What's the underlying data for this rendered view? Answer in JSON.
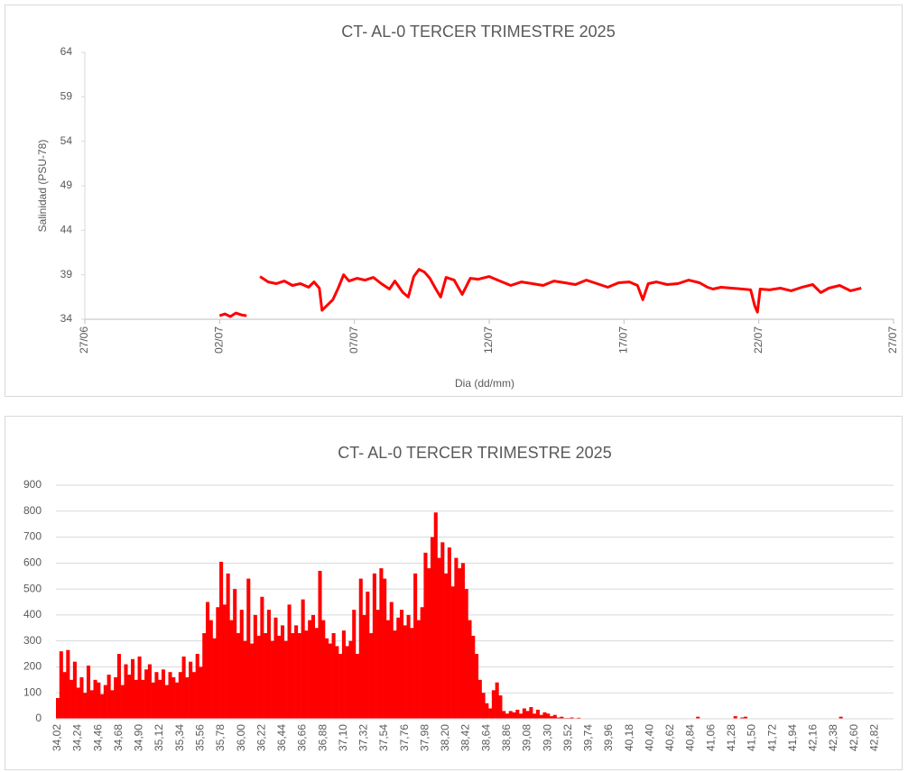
{
  "chart_data": [
    {
      "type": "line",
      "title": "CT- AL-0 TERCER TRIMESTRE 2025",
      "ylabel": "Salinidad (PSU-78)",
      "xlabel": "Dia (dd/mm)",
      "xlim": [
        0,
        30
      ],
      "xticks": [
        {
          "value": 0,
          "label": "27/06"
        },
        {
          "value": 5,
          "label": "02/07"
        },
        {
          "value": 10,
          "label": "07/07"
        },
        {
          "value": 15,
          "label": "12/07"
        },
        {
          "value": 20,
          "label": "17/07"
        },
        {
          "value": 25,
          "label": "22/07"
        },
        {
          "value": 30,
          "label": "27/07"
        }
      ],
      "ylim": [
        34,
        64
      ],
      "yticks": [
        34,
        39,
        44,
        49,
        54,
        59,
        64
      ],
      "grid": false,
      "series": [
        {
          "name": "Salinidad",
          "color": "#ff0000",
          "x": [
            5.0,
            5.2,
            5.4,
            5.6,
            5.8,
            6.0,
            6.2,
            6.5,
            6.8,
            7.1,
            7.4,
            7.7,
            8.0,
            8.3,
            8.5,
            8.7,
            8.8,
            9.0,
            9.2,
            9.4,
            9.6,
            9.8,
            10.1,
            10.4,
            10.7,
            11.0,
            11.3,
            11.5,
            11.8,
            12.0,
            12.2,
            12.4,
            12.6,
            12.8,
            13.0,
            13.2,
            13.4,
            13.7,
            14.0,
            14.3,
            14.6,
            15.0,
            15.4,
            15.8,
            16.2,
            16.6,
            17.0,
            17.4,
            17.8,
            18.2,
            18.6,
            19.0,
            19.4,
            19.8,
            20.2,
            20.5,
            20.7,
            20.9,
            21.2,
            21.6,
            22.0,
            22.4,
            22.8,
            23.1,
            23.3,
            23.6,
            24.0,
            24.4,
            24.7,
            24.85,
            24.95,
            25.05,
            25.4,
            25.8,
            26.2,
            26.6,
            27.0,
            27.3,
            27.6,
            28.0,
            28.4,
            28.8
          ],
          "values": [
            34.4,
            34.6,
            34.3,
            34.7,
            34.5,
            34.4,
            null,
            38.8,
            38.2,
            38.0,
            38.3,
            37.8,
            38.0,
            37.6,
            38.2,
            37.5,
            35.0,
            35.6,
            36.2,
            37.5,
            39.0,
            38.3,
            38.6,
            38.4,
            38.7,
            38.0,
            37.4,
            38.3,
            37.0,
            36.5,
            38.8,
            39.6,
            39.3,
            38.6,
            37.5,
            36.5,
            38.7,
            38.4,
            36.8,
            38.6,
            38.5,
            38.8,
            38.3,
            37.8,
            38.2,
            38.0,
            37.8,
            38.3,
            38.1,
            37.9,
            38.4,
            38.0,
            37.6,
            38.1,
            38.2,
            37.8,
            36.2,
            38.0,
            38.2,
            37.9,
            38.0,
            38.4,
            38.1,
            37.6,
            37.4,
            37.6,
            37.5,
            37.4,
            37.3,
            35.5,
            34.8,
            37.4,
            37.3,
            37.5,
            37.2,
            37.6,
            37.9,
            37.0,
            37.5,
            37.8,
            37.2,
            37.5
          ]
        }
      ]
    },
    {
      "type": "bar",
      "title": "CT- AL-0 TERCER TRIMESTRE 2025",
      "color": "#ff0000",
      "ylim": [
        0,
        900
      ],
      "yticks": [
        0,
        100,
        200,
        300,
        400,
        500,
        600,
        700,
        800,
        900
      ],
      "grid": true,
      "categories": [
        "34,02",
        null,
        null,
        null,
        null,
        null,
        "34,24",
        null,
        null,
        null,
        null,
        null,
        "34,46",
        null,
        null,
        null,
        null,
        null,
        "34,68",
        null,
        null,
        null,
        null,
        null,
        "34,90",
        null,
        null,
        null,
        null,
        null,
        "35,12",
        null,
        null,
        null,
        null,
        null,
        "35,34",
        null,
        null,
        null,
        null,
        null,
        "35,56",
        null,
        null,
        null,
        null,
        null,
        "35,78",
        null,
        null,
        null,
        null,
        null,
        "36,00",
        null,
        null,
        null,
        null,
        null,
        "36,22",
        null,
        null,
        null,
        null,
        null,
        "36,44",
        null,
        null,
        null,
        null,
        null,
        "36,66",
        null,
        null,
        null,
        null,
        null,
        "36,88",
        null,
        null,
        null,
        null,
        null,
        "37,10",
        null,
        null,
        null,
        null,
        null,
        "37,32",
        null,
        null,
        null,
        null,
        null,
        "37,54",
        null,
        null,
        null,
        null,
        null,
        "37,76",
        null,
        null,
        null,
        null,
        null,
        "37,98",
        null,
        null,
        null,
        null,
        null,
        "38,20",
        null,
        null,
        null,
        null,
        null,
        "38,42",
        null,
        null,
        null,
        null,
        null,
        "38,64",
        null,
        null,
        null,
        null,
        null,
        "38,86",
        null,
        null,
        null,
        null,
        null,
        "39,08",
        null,
        null,
        null,
        null,
        null,
        "39,30",
        null,
        null,
        null,
        null,
        null,
        "39,52",
        null,
        null,
        null,
        null,
        null,
        "39,74",
        null,
        null,
        null,
        null,
        null,
        "39,96",
        null,
        null,
        null,
        null,
        null,
        "40,18",
        null,
        null,
        null,
        null,
        null,
        "40,40",
        null,
        null,
        null,
        null,
        null,
        "40,62",
        null,
        null,
        null,
        null,
        null,
        "40,84",
        null,
        null,
        null,
        null,
        null,
        "41,06",
        null,
        null,
        null,
        null,
        null,
        "41,28",
        null,
        null,
        null,
        null,
        null,
        "41,50",
        null,
        null,
        null,
        null,
        null,
        "41,72",
        null,
        null,
        null,
        null,
        null,
        "41,94",
        null,
        null,
        null,
        null,
        null,
        "42,16",
        null,
        null,
        null,
        null,
        null,
        "42,38",
        null,
        null,
        null,
        null,
        null,
        "42,60",
        null,
        null,
        null,
        null,
        null,
        "42,82",
        null,
        null,
        null,
        null,
        null
      ],
      "values": [
        80,
        260,
        180,
        265,
        150,
        220,
        120,
        160,
        100,
        205,
        110,
        150,
        140,
        95,
        130,
        170,
        110,
        160,
        250,
        130,
        210,
        170,
        230,
        150,
        240,
        150,
        190,
        210,
        140,
        180,
        150,
        190,
        130,
        180,
        160,
        140,
        180,
        240,
        160,
        220,
        180,
        250,
        200,
        330,
        450,
        380,
        310,
        430,
        605,
        440,
        560,
        380,
        500,
        330,
        420,
        300,
        540,
        290,
        400,
        320,
        470,
        330,
        420,
        300,
        390,
        320,
        360,
        300,
        440,
        330,
        360,
        330,
        460,
        340,
        380,
        400,
        350,
        570,
        380,
        310,
        290,
        330,
        280,
        250,
        340,
        280,
        300,
        420,
        250,
        540,
        400,
        490,
        330,
        560,
        420,
        580,
        540,
        380,
        450,
        340,
        390,
        420,
        360,
        400,
        350,
        560,
        380,
        430,
        640,
        580,
        700,
        795,
        620,
        680,
        560,
        660,
        510,
        620,
        580,
        600,
        500,
        380,
        320,
        250,
        150,
        100,
        60,
        40,
        110,
        140,
        90,
        30,
        20,
        30,
        25,
        35,
        20,
        40,
        30,
        45,
        20,
        35,
        15,
        25,
        20,
        10,
        15,
        5,
        8,
        3,
        3,
        5,
        2,
        4,
        0,
        0,
        0,
        0,
        0,
        0,
        0,
        0,
        0,
        0,
        0,
        0,
        0,
        0,
        0,
        0,
        0,
        0,
        0,
        0,
        0,
        0,
        0,
        0,
        0,
        0,
        0,
        0,
        0,
        0,
        0,
        0,
        0,
        0,
        8,
        0,
        0,
        0,
        0,
        0,
        0,
        0,
        0,
        0,
        0,
        10,
        0,
        5,
        8,
        0,
        0,
        0,
        0,
        0,
        0,
        0,
        0,
        0,
        0,
        0,
        0,
        0,
        0,
        0,
        0,
        0,
        0,
        0,
        0,
        0,
        0,
        0,
        0,
        0,
        0,
        0,
        8,
        0,
        0,
        0,
        0,
        0,
        0,
        0,
        0,
        0,
        0,
        0,
        0,
        0,
        0,
        0
      ]
    }
  ]
}
